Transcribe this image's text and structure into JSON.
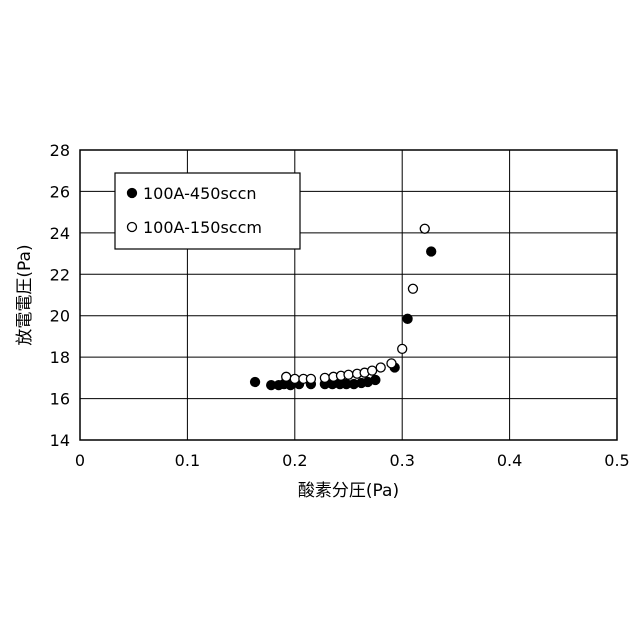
{
  "chart_data": {
    "type": "scatter",
    "title": "",
    "xlabel": "酸素分圧(Pa)",
    "ylabel": "放電電圧(Pa)",
    "xlim": [
      0,
      0.5
    ],
    "ylim": [
      14,
      28
    ],
    "x_ticks": [
      0,
      0.1,
      0.2,
      0.3,
      0.4,
      0.5
    ],
    "x_tick_labels": [
      "0",
      "0.1",
      "0.2",
      "0.3",
      "0.4",
      "0.5"
    ],
    "y_ticks": [
      14,
      16,
      18,
      20,
      22,
      24,
      26,
      28
    ],
    "y_tick_labels": [
      "14",
      "16",
      "18",
      "20",
      "22",
      "24",
      "26",
      "28"
    ],
    "grid": true,
    "legend_position": "top-left",
    "series": [
      {
        "name": "100A-450sccn",
        "marker": "filled-circle",
        "color": "#000000",
        "points": [
          [
            0.163,
            16.8
          ],
          [
            0.178,
            16.65
          ],
          [
            0.185,
            16.65
          ],
          [
            0.19,
            16.7
          ],
          [
            0.196,
            16.65
          ],
          [
            0.204,
            16.7
          ],
          [
            0.215,
            16.7
          ],
          [
            0.228,
            16.7
          ],
          [
            0.235,
            16.7
          ],
          [
            0.242,
            16.7
          ],
          [
            0.248,
            16.7
          ],
          [
            0.255,
            16.7
          ],
          [
            0.262,
            16.75
          ],
          [
            0.268,
            16.8
          ],
          [
            0.275,
            16.9
          ],
          [
            0.293,
            17.5
          ],
          [
            0.305,
            19.85
          ],
          [
            0.327,
            23.1
          ]
        ]
      },
      {
        "name": "100A-150sccm",
        "marker": "open-circle",
        "color": "#000000",
        "points": [
          [
            0.192,
            17.05
          ],
          [
            0.2,
            16.95
          ],
          [
            0.208,
            16.95
          ],
          [
            0.215,
            16.95
          ],
          [
            0.228,
            17.0
          ],
          [
            0.236,
            17.05
          ],
          [
            0.243,
            17.1
          ],
          [
            0.25,
            17.15
          ],
          [
            0.258,
            17.2
          ],
          [
            0.265,
            17.25
          ],
          [
            0.272,
            17.35
          ],
          [
            0.28,
            17.5
          ],
          [
            0.29,
            17.7
          ],
          [
            0.3,
            18.4
          ],
          [
            0.31,
            21.3
          ],
          [
            0.321,
            24.2
          ]
        ]
      }
    ]
  }
}
